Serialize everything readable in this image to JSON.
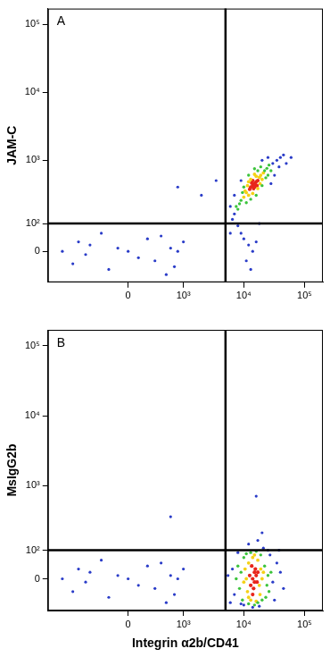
{
  "chart_data": [
    {
      "type": "scatter",
      "panel_label": "A",
      "y_label": "JAM-C",
      "xlim": [
        -2600,
        200000
      ],
      "ylim": [
        -115,
        170000
      ],
      "xticks": [
        0,
        {
          "value": 1000,
          "label": "10³"
        },
        {
          "value": 10000,
          "label": "10⁴"
        },
        {
          "value": 100000,
          "label": "10⁵"
        }
      ],
      "yticks": [
        0,
        {
          "value": 100,
          "label": "10²"
        },
        {
          "value": 1000,
          "label": "10³"
        },
        {
          "value": 10000,
          "label": "10⁴"
        },
        {
          "value": 100000,
          "label": "10⁵"
        }
      ],
      "quadrant_x": 5000,
      "quadrant_y": 100,
      "grid": false,
      "series": [
        {
          "color": "#2a3cc8",
          "values": [
            [
              7000,
              150
            ],
            [
              6500,
              120
            ],
            [
              30000,
              900
            ],
            [
              35000,
              1000
            ],
            [
              40000,
              1100
            ],
            [
              8000,
              90
            ],
            [
              9000,
              60
            ],
            [
              10000,
              40
            ],
            [
              12000,
              20
            ],
            [
              14000,
              0
            ],
            [
              11000,
              -30
            ],
            [
              13000,
              -60
            ],
            [
              16000,
              30
            ],
            [
              6000,
              60
            ],
            [
              7000,
              300
            ],
            [
              20000,
              1000
            ],
            [
              45000,
              1200
            ],
            [
              50000,
              900
            ],
            [
              32000,
              600
            ],
            [
              25000,
              1100
            ],
            [
              38000,
              800
            ],
            [
              18000,
              100
            ],
            [
              9000,
              500
            ],
            [
              6000,
              200
            ],
            [
              28000,
              450
            ],
            [
              60000,
              1100
            ],
            [
              0,
              0
            ],
            [
              -500,
              20
            ],
            [
              300,
              -30
            ],
            [
              600,
              10
            ],
            [
              -1000,
              -40
            ],
            [
              200,
              40
            ],
            [
              -200,
              -60
            ],
            [
              800,
              0
            ],
            [
              -800,
              30
            ],
            [
              500,
              -80
            ],
            [
              -300,
              60
            ],
            [
              100,
              -20
            ],
            [
              1000,
              30
            ],
            [
              -600,
              -10
            ],
            [
              400,
              50
            ],
            [
              -1500,
              0
            ],
            [
              700,
              -50
            ],
            [
              -100,
              10
            ],
            [
              2000,
              300
            ],
            [
              800,
              400
            ],
            [
              3500,
              500
            ]
          ]
        },
        {
          "color": "#3cc43c",
          "values": [
            [
              9000,
              250
            ],
            [
              8500,
              220
            ],
            [
              22000,
              700
            ],
            [
              24000,
              760
            ],
            [
              10000,
              400
            ],
            [
              20000,
              420
            ],
            [
              13000,
              260
            ],
            [
              17000,
              700
            ],
            [
              25000,
              600
            ],
            [
              9500,
              330
            ],
            [
              8000,
              180
            ],
            [
              12000,
              600
            ],
            [
              26000,
              850
            ],
            [
              19000,
              800
            ],
            [
              11000,
              230
            ],
            [
              23000,
              550
            ],
            [
              15000,
              750
            ],
            [
              7500,
              200
            ],
            [
              16000,
              300
            ],
            [
              28000,
              700
            ]
          ]
        },
        {
          "color": "#f5d116",
          "values": [
            [
              11000,
              330
            ],
            [
              12000,
              300
            ],
            [
              18000,
              560
            ],
            [
              19000,
              600
            ],
            [
              13000,
              520
            ],
            [
              17000,
              380
            ],
            [
              11500,
              420
            ],
            [
              16000,
              580
            ],
            [
              20000,
              520
            ],
            [
              10500,
              350
            ],
            [
              14000,
              320
            ],
            [
              18500,
              450
            ],
            [
              12000,
              480
            ],
            [
              15000,
              620
            ],
            [
              21000,
              650
            ],
            [
              10000,
              280
            ]
          ]
        },
        {
          "color": "#e8261c",
          "values": [
            [
              14000,
              420
            ],
            [
              15000,
              450
            ],
            [
              13000,
              400
            ],
            [
              16000,
              480
            ],
            [
              14500,
              380
            ],
            [
              15500,
              430
            ],
            [
              13500,
              460
            ],
            [
              16500,
              420
            ],
            [
              14000,
              500
            ],
            [
              12500,
              370
            ],
            [
              15000,
              400
            ],
            [
              17000,
              500
            ]
          ]
        }
      ]
    },
    {
      "type": "scatter",
      "panel_label": "B",
      "y_label": "MsIgG2b",
      "x_label": "Integrin α2b/CD41",
      "xlim": [
        -2600,
        200000
      ],
      "ylim": [
        -115,
        170000
      ],
      "xticks": [
        0,
        {
          "value": 1000,
          "label": "10³"
        },
        {
          "value": 10000,
          "label": "10⁴"
        },
        {
          "value": 100000,
          "label": "10⁵"
        }
      ],
      "yticks": [
        0,
        {
          "value": 100,
          "label": "10²"
        },
        {
          "value": 1000,
          "label": "10³"
        },
        {
          "value": 10000,
          "label": "10⁴"
        },
        {
          "value": 100000,
          "label": "10⁵"
        }
      ],
      "quadrant_x": 5000,
      "quadrant_y": 100,
      "grid": false,
      "series": [
        {
          "color": "#2a3cc8",
          "values": [
            [
              7000,
              -50
            ],
            [
              6500,
              30
            ],
            [
              30000,
              -10
            ],
            [
              35000,
              50
            ],
            [
              8000,
              90
            ],
            [
              6000,
              -80
            ],
            [
              32000,
              -70
            ],
            [
              27000,
              80
            ],
            [
              40000,
              20
            ],
            [
              14000,
              -100
            ],
            [
              18000,
              -95
            ],
            [
              10000,
              -90
            ],
            [
              21000,
              110
            ],
            [
              12000,
              130
            ],
            [
              17000,
              150
            ],
            [
              45000,
              -30
            ],
            [
              5500,
              10
            ],
            [
              25000,
              100
            ],
            [
              9000,
              -85
            ],
            [
              16000,
              700
            ],
            [
              20000,
              200
            ],
            [
              38000,
              100
            ],
            [
              0,
              0
            ],
            [
              -500,
              20
            ],
            [
              300,
              -30
            ],
            [
              600,
              10
            ],
            [
              -1000,
              -40
            ],
            [
              200,
              40
            ],
            [
              -200,
              -60
            ],
            [
              800,
              0
            ],
            [
              -800,
              30
            ],
            [
              500,
              -80
            ],
            [
              -300,
              60
            ],
            [
              100,
              -20
            ],
            [
              1000,
              30
            ],
            [
              -600,
              -10
            ],
            [
              400,
              50
            ],
            [
              -1500,
              0
            ],
            [
              700,
              -50
            ],
            [
              -100,
              10
            ],
            [
              600,
              350
            ]
          ]
        },
        {
          "color": "#3cc43c",
          "values": [
            [
              9000,
              20
            ],
            [
              8500,
              -30
            ],
            [
              22000,
              40
            ],
            [
              24000,
              -20
            ],
            [
              10000,
              70
            ],
            [
              20000,
              -70
            ],
            [
              13000,
              90
            ],
            [
              17000,
              -80
            ],
            [
              25000,
              10
            ],
            [
              9500,
              -70
            ],
            [
              8000,
              40
            ],
            [
              12000,
              -85
            ],
            [
              26000,
              -40
            ],
            [
              19000,
              80
            ],
            [
              11000,
              85
            ],
            [
              23000,
              -60
            ],
            [
              15000,
              -90
            ],
            [
              7500,
              0
            ],
            [
              16000,
              95
            ],
            [
              28000,
              20
            ]
          ]
        },
        {
          "color": "#f5d116",
          "values": [
            [
              11000,
              0
            ],
            [
              12000,
              50
            ],
            [
              18000,
              -20
            ],
            [
              19000,
              30
            ],
            [
              13000,
              -70
            ],
            [
              17000,
              60
            ],
            [
              11500,
              -40
            ],
            [
              20000,
              0
            ],
            [
              10500,
              30
            ],
            [
              14000,
              70
            ],
            [
              18500,
              -50
            ],
            [
              12000,
              -60
            ],
            [
              16000,
              -75
            ],
            [
              21000,
              20
            ],
            [
              10000,
              -10
            ],
            [
              15000,
              80
            ]
          ]
        },
        {
          "color": "#e8261c",
          "values": [
            [
              14000,
              0
            ],
            [
              15000,
              20
            ],
            [
              13000,
              -20
            ],
            [
              16000,
              10
            ],
            [
              14500,
              -30
            ],
            [
              15500,
              30
            ],
            [
              13500,
              40
            ],
            [
              16500,
              -10
            ],
            [
              14000,
              -50
            ],
            [
              12500,
              10
            ],
            [
              15000,
              -10
            ],
            [
              17000,
              20
            ]
          ]
        }
      ]
    }
  ]
}
